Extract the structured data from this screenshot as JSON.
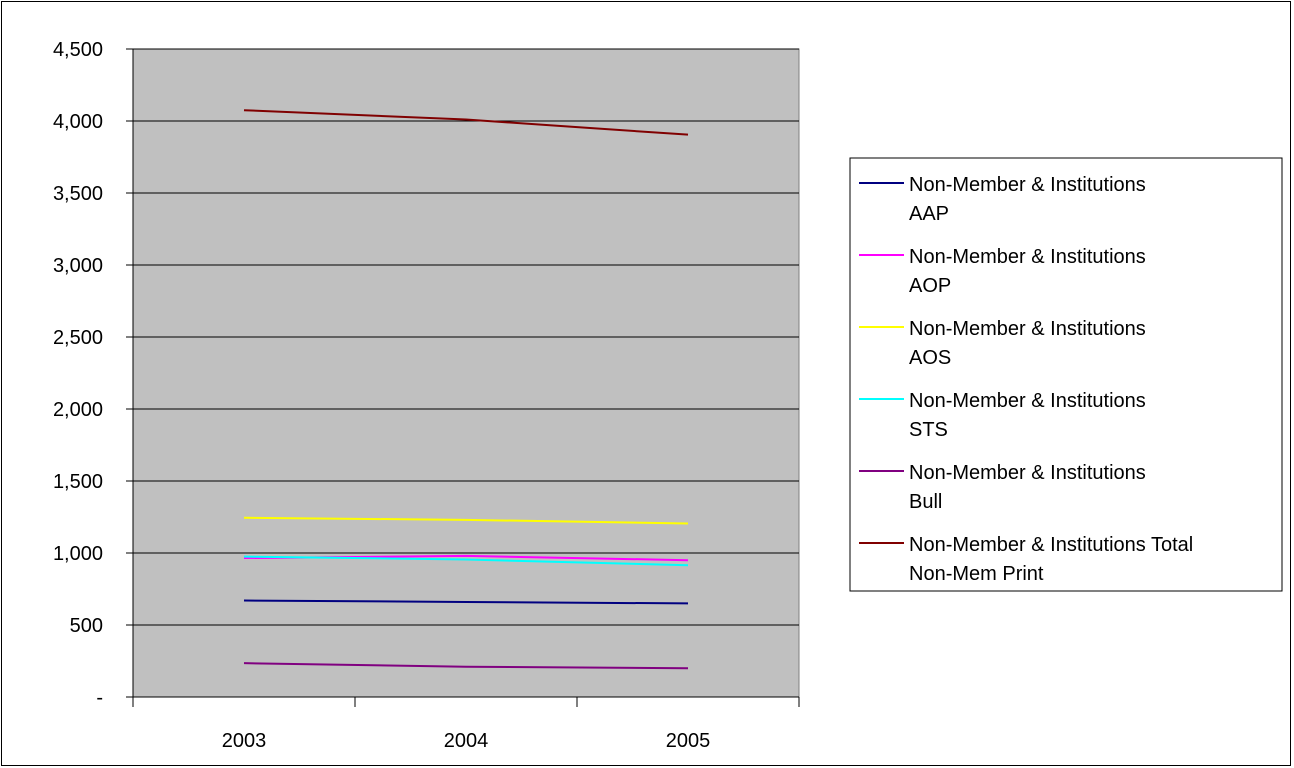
{
  "chart_data": {
    "type": "line",
    "title": "",
    "xlabel": "",
    "ylabel": "",
    "categories": [
      "2003",
      "2004",
      "2005"
    ],
    "ylim": [
      0,
      4500
    ],
    "yticks": [
      0,
      500,
      1000,
      1500,
      2000,
      2500,
      3000,
      3500,
      4000,
      4500
    ],
    "ytick_labels": [
      "-",
      "500",
      "1,000",
      "1,500",
      "2,000",
      "2,500",
      "3,000",
      "3,500",
      "4,000",
      "4,500"
    ],
    "grid": true,
    "plot_background": "#c0c0c0",
    "legend_position": "right",
    "series": [
      {
        "name": "Non-Member & Institutions AAP",
        "legend_lines": [
          "Non-Member & Institutions",
          "AAP"
        ],
        "color": "#000080",
        "values": [
          670,
          660,
          650
        ]
      },
      {
        "name": "Non-Member & Institutions AOP",
        "legend_lines": [
          "Non-Member & Institutions",
          "AOP"
        ],
        "color": "#ff00ff",
        "values": [
          965,
          980,
          950
        ]
      },
      {
        "name": "Non-Member & Institutions AOS",
        "legend_lines": [
          "Non-Member & Institutions",
          "AOS"
        ],
        "color": "#ffff00",
        "values": [
          1245,
          1230,
          1205
        ]
      },
      {
        "name": "Non-Member & Institutions STS",
        "legend_lines": [
          "Non-Member & Institutions",
          "STS"
        ],
        "color": "#00ffff",
        "values": [
          975,
          955,
          915
        ]
      },
      {
        "name": "Non-Member & Institutions Bull",
        "legend_lines": [
          "Non-Member & Institutions",
          "Bull"
        ],
        "color": "#800080",
        "values": [
          235,
          210,
          200
        ]
      },
      {
        "name": "Non-Member & Institutions Total Non-Mem Print",
        "legend_lines": [
          "Non-Member & Institutions Total",
          "Non-Mem Print"
        ],
        "color": "#800000",
        "values": [
          4075,
          4010,
          3905
        ]
      }
    ]
  }
}
